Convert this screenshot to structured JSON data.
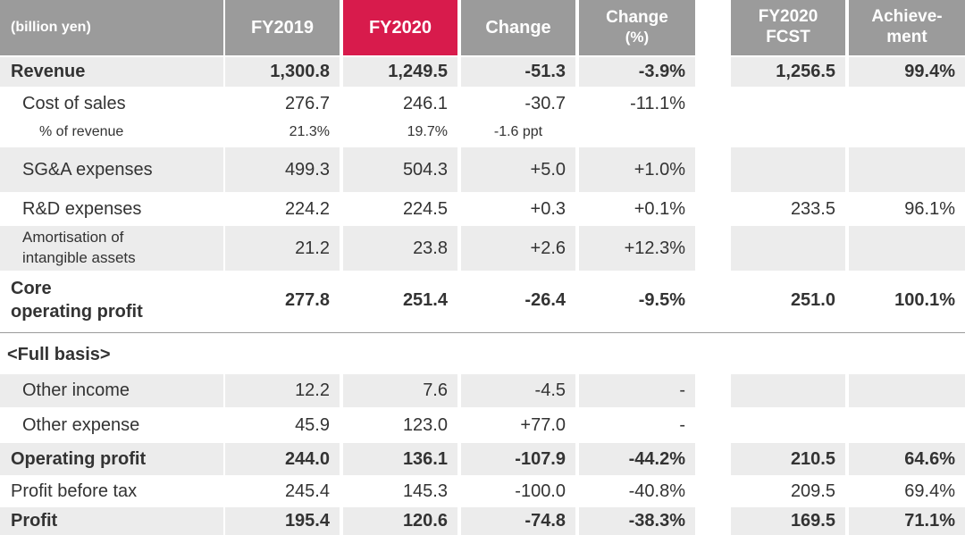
{
  "header": {
    "unit": "(billion yen)",
    "fy2019": "FY2019",
    "fy2020": "FY2020",
    "change": "Change",
    "change_pct_line1": "Change",
    "change_pct_line2": "(%)",
    "fcst_line1": "FY2020",
    "fcst_line2": "FCST",
    "achv_line1": "Achieve-",
    "achv_line2": "ment"
  },
  "section_full_basis": "<Full basis>",
  "rows": {
    "revenue": {
      "label": "Revenue",
      "fy2019": "1,300.8",
      "fy2020": "1,249.5",
      "change": "-51.3",
      "change_pct": "-3.9%",
      "fcst": "1,256.5",
      "achievement": "99.4%"
    },
    "cost_of_sales": {
      "label": "Cost of sales",
      "fy2019": "276.7",
      "fy2020": "246.1",
      "change": "-30.7",
      "change_pct": "-11.1%",
      "fcst": "",
      "achievement": ""
    },
    "pct_revenue": {
      "label": "% of revenue",
      "fy2019": "21.3%",
      "fy2020": "19.7%",
      "change": "-1.6 ppt",
      "change_pct": "",
      "fcst": "",
      "achievement": ""
    },
    "sga": {
      "label": "SG&A expenses",
      "fy2019": "499.3",
      "fy2020": "504.3",
      "change": "+5.0",
      "change_pct": "+1.0%",
      "fcst": "",
      "achievement": ""
    },
    "rnd": {
      "label": "R&D expenses",
      "fy2019": "224.2",
      "fy2020": "224.5",
      "change": "+0.3",
      "change_pct": "+0.1%",
      "fcst": "233.5",
      "achievement": "96.1%"
    },
    "amortisation": {
      "label_line1": "Amortisation of",
      "label_line2": "intangible assets",
      "fy2019": "21.2",
      "fy2020": "23.8",
      "change": "+2.6",
      "change_pct": "+12.3%",
      "fcst": "",
      "achievement": ""
    },
    "core_op": {
      "label_line1": "Core",
      "label_line2": "operating profit",
      "fy2019": "277.8",
      "fy2020": "251.4",
      "change": "-26.4",
      "change_pct": "-9.5%",
      "fcst": "251.0",
      "achievement": "100.1%"
    },
    "other_income": {
      "label": "Other income",
      "fy2019": "12.2",
      "fy2020": "7.6",
      "change": "-4.5",
      "change_pct": "-",
      "fcst": "",
      "achievement": ""
    },
    "other_expense": {
      "label": "Other expense",
      "fy2019": "45.9",
      "fy2020": "123.0",
      "change": "+77.0",
      "change_pct": "-",
      "fcst": "",
      "achievement": ""
    },
    "operating_profit": {
      "label": "Operating profit",
      "fy2019": "244.0",
      "fy2020": "136.1",
      "change": "-107.9",
      "change_pct": "-44.2%",
      "fcst": "210.5",
      "achievement": "64.6%"
    },
    "pbt": {
      "label": "Profit before tax",
      "fy2019": "245.4",
      "fy2020": "145.3",
      "change": "-100.0",
      "change_pct": "-40.8%",
      "fcst": "209.5",
      "achievement": "69.4%"
    },
    "profit": {
      "label": "Profit",
      "fy2019": "195.4",
      "fy2020": "120.6",
      "change": "-74.8",
      "change_pct": "-38.3%",
      "fcst": "169.5",
      "achievement": "71.1%"
    }
  },
  "colors": {
    "header_gray": "#9b9b9b",
    "header_red": "#d81b4c",
    "row_shade": "#ececec",
    "text": "#333333"
  }
}
